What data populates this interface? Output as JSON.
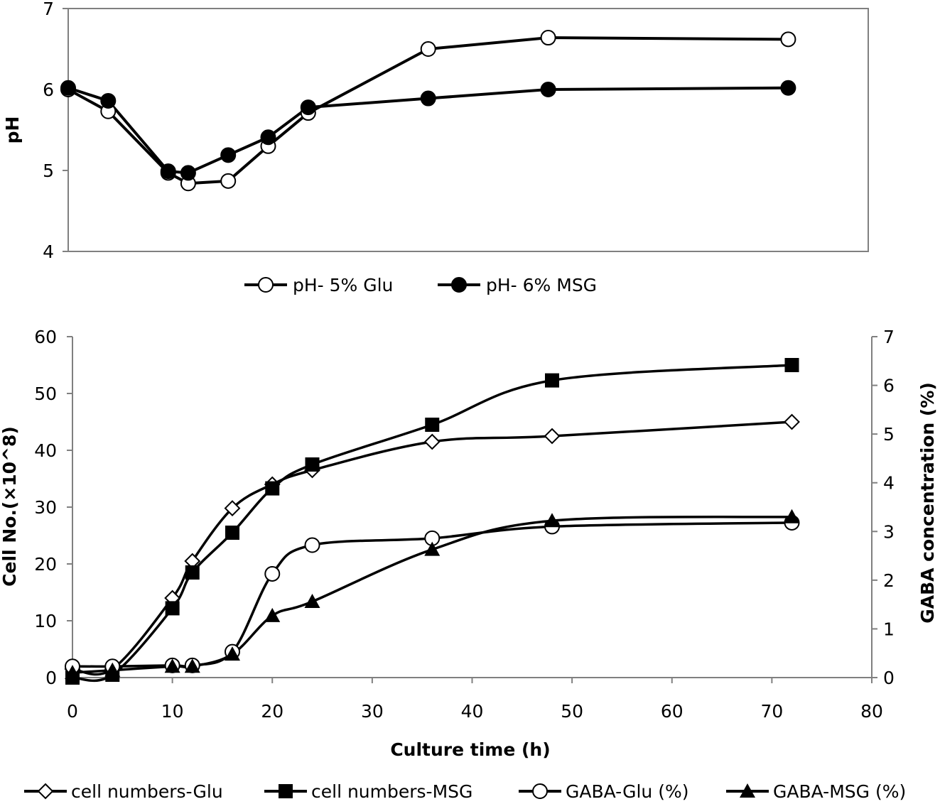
{
  "chart_data": [
    {
      "type": "line",
      "title": "",
      "xlabel": "",
      "ylabel": "pH",
      "xlim": [
        0,
        80
      ],
      "ylim": [
        4,
        7
      ],
      "yticks": [
        "4",
        "5",
        "6",
        "7"
      ],
      "grid": false,
      "legend_position": "bottom",
      "series": [
        {
          "name": "pH- 5% Glu",
          "marker": "open-circle",
          "color": "#000000",
          "x": [
            0,
            4,
            10,
            12,
            16,
            20,
            24,
            36,
            48,
            72
          ],
          "y": [
            6.0,
            5.73,
            4.97,
            4.84,
            4.87,
            5.3,
            5.71,
            6.5,
            6.64,
            6.62
          ]
        },
        {
          "name": "pH- 6% MSG",
          "marker": "filled-circle",
          "color": "#000000",
          "x": [
            0,
            4,
            10,
            12,
            16,
            20,
            24,
            36,
            48,
            72
          ],
          "y": [
            6.02,
            5.86,
            4.99,
            4.97,
            5.19,
            5.41,
            5.78,
            5.89,
            6.0,
            6.02
          ]
        }
      ]
    },
    {
      "type": "line",
      "title": "",
      "xlabel": "Culture time (h)",
      "ylabel": "Cell No.(×10^8)",
      "y2label": "GABA concentration (%)",
      "xlim": [
        0,
        80
      ],
      "xticks": [
        "0",
        "10",
        "20",
        "30",
        "40",
        "50",
        "60",
        "70",
        "80"
      ],
      "ylim": [
        0,
        60
      ],
      "yticks": [
        "0",
        "10",
        "20",
        "30",
        "40",
        "50",
        "60"
      ],
      "y2lim": [
        0,
        7
      ],
      "y2ticks": [
        "0",
        "1",
        "2",
        "3",
        "4",
        "5",
        "6",
        "7"
      ],
      "grid": false,
      "legend_position": "bottom",
      "series": [
        {
          "name": "cell numbers-Glu",
          "axis": "left",
          "marker": "open-diamond",
          "color": "#000000",
          "x": [
            0,
            4,
            10,
            12,
            16,
            20,
            24,
            36,
            48,
            72
          ],
          "y": [
            1.5,
            1.5,
            14,
            20.5,
            29.8,
            34,
            36.5,
            41.5,
            42.5,
            45
          ]
        },
        {
          "name": "cell numbers-MSG",
          "axis": "left",
          "marker": "filled-square",
          "color": "#000000",
          "x": [
            0,
            4,
            10,
            12,
            16,
            20,
            24,
            36,
            48,
            72
          ],
          "y": [
            0,
            0.5,
            12.2,
            18.5,
            25.5,
            33.3,
            37.5,
            44.5,
            52.3,
            55
          ]
        },
        {
          "name": "GABA-Glu (%)",
          "axis": "right",
          "marker": "open-circle",
          "color": "#000000",
          "x": [
            0,
            4,
            10,
            12,
            16,
            20,
            24,
            36,
            48,
            72
          ],
          "y": [
            0.23,
            0.23,
            0.25,
            0.25,
            0.53,
            2.13,
            2.72,
            2.86,
            3.1,
            3.18
          ]
        },
        {
          "name": "GABA-MSG (%)",
          "axis": "right",
          "marker": "filled-triangle",
          "color": "#000000",
          "x": [
            0,
            4,
            10,
            12,
            16,
            20,
            24,
            36,
            48,
            72
          ],
          "y": [
            0.1,
            0.15,
            0.23,
            0.23,
            0.48,
            1.27,
            1.56,
            2.63,
            3.22,
            3.3
          ]
        }
      ]
    }
  ]
}
